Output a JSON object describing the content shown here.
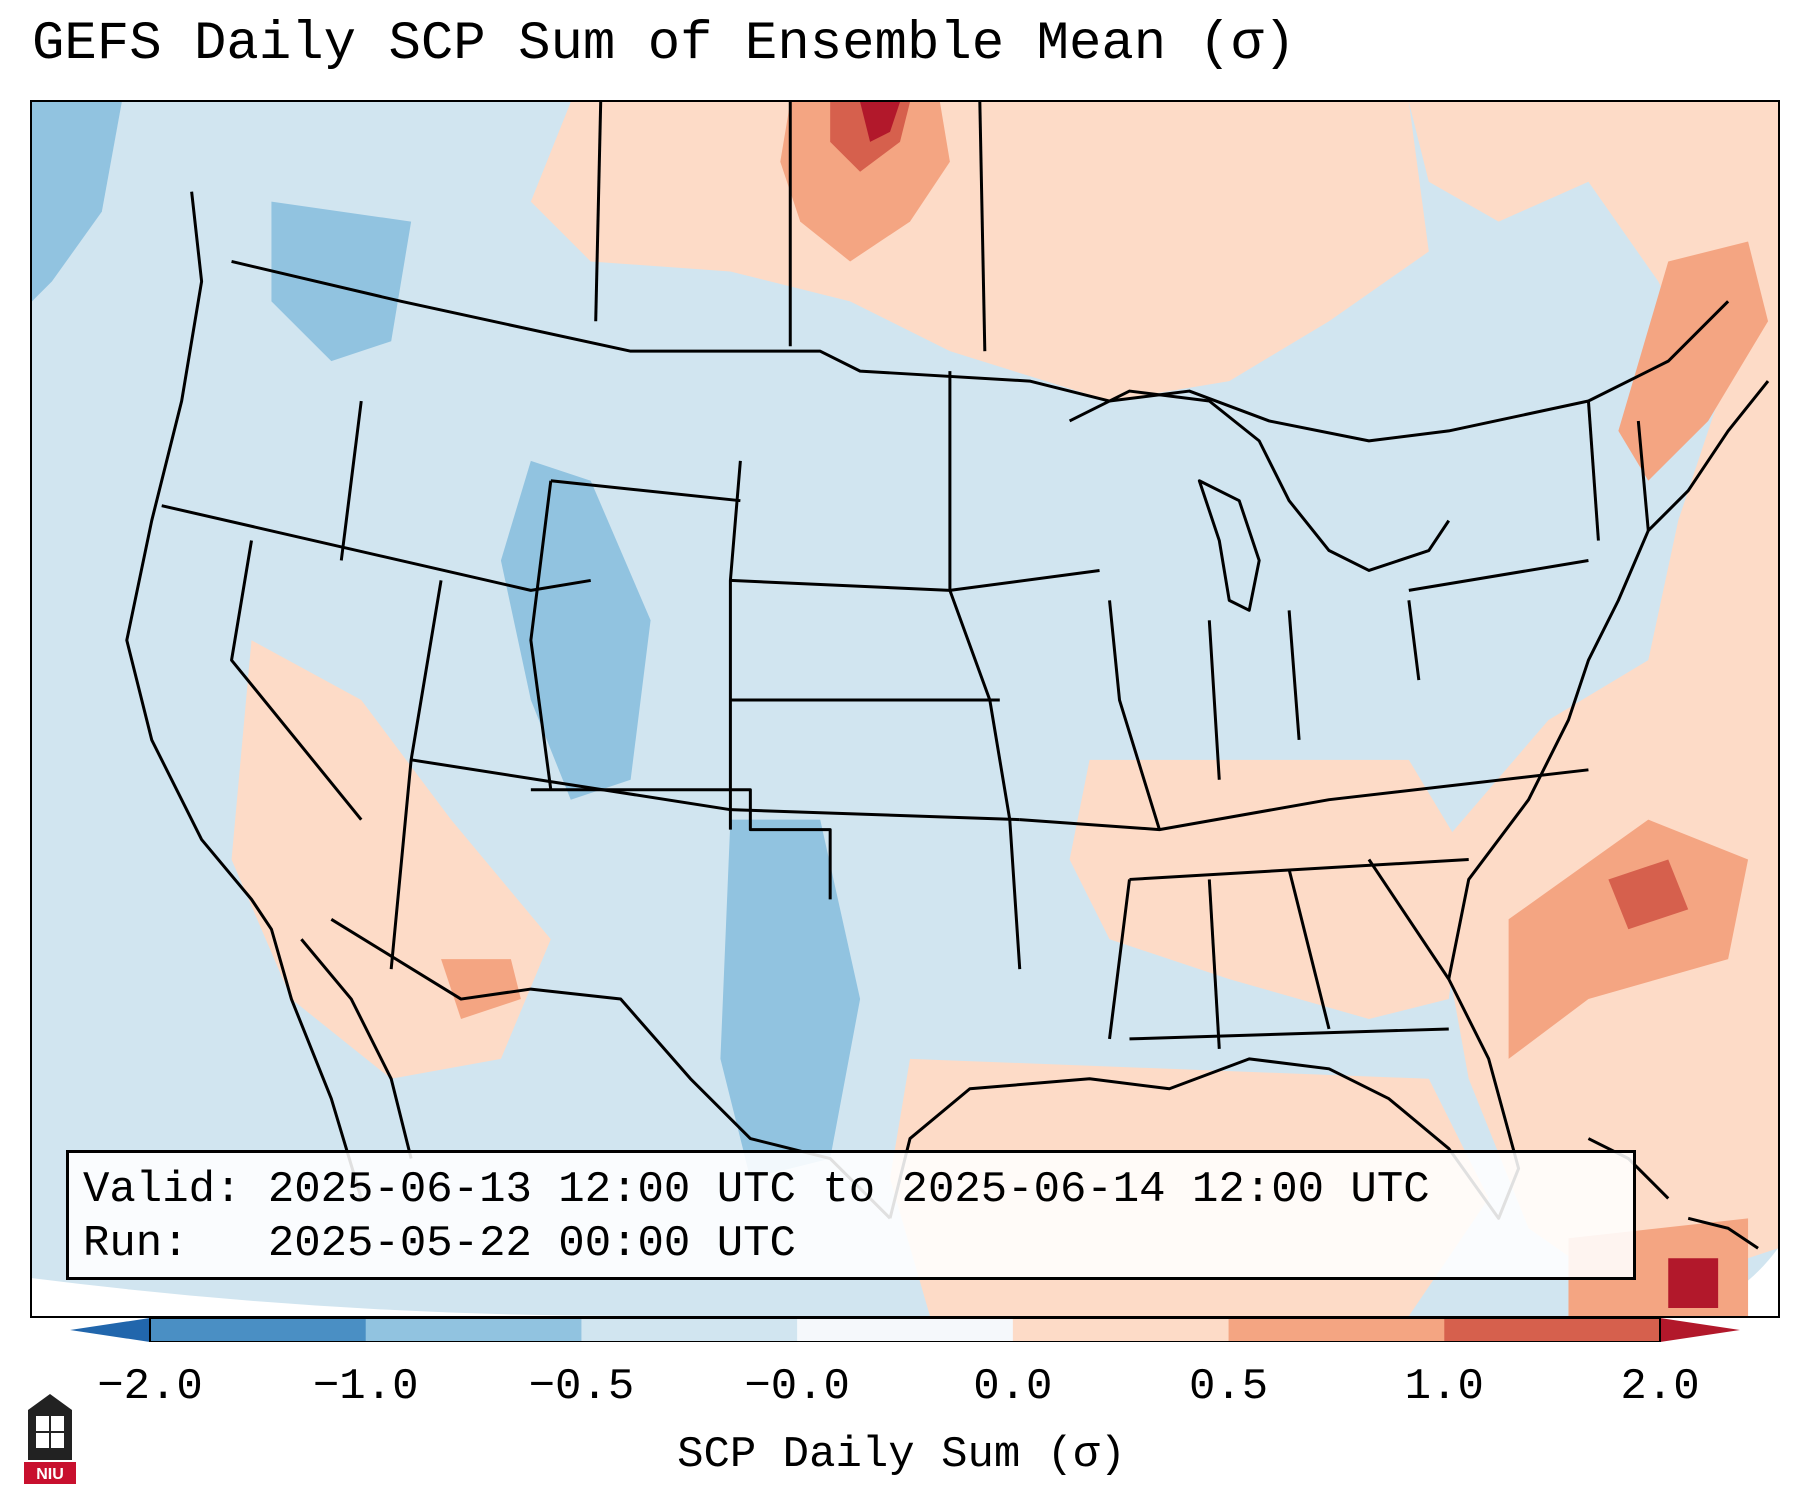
{
  "title": "GEFS Daily SCP Sum of Ensemble Mean (σ)",
  "info": {
    "valid_label": "Valid:",
    "valid_value": "2025-06-13 12:00 UTC to 2025-06-14 12:00 UTC",
    "run_label": "Run:",
    "run_value": "2025-05-22 00:00 UTC"
  },
  "colorbar": {
    "label": "SCP Daily Sum (σ)",
    "ticks": [
      "−2.0",
      "−1.0",
      "−0.5",
      "−0.0",
      "0.0",
      "0.5",
      "1.0",
      "2.0"
    ],
    "colors": [
      "#4a8fc4",
      "#91c3e0",
      "#d1e5f0",
      "#f5f8fb",
      "#fddbc7",
      "#f4a582",
      "#d6604d"
    ],
    "under_color": "#2166ac",
    "over_color": "#b2182b"
  },
  "logo": {
    "text": "NIU"
  }
}
